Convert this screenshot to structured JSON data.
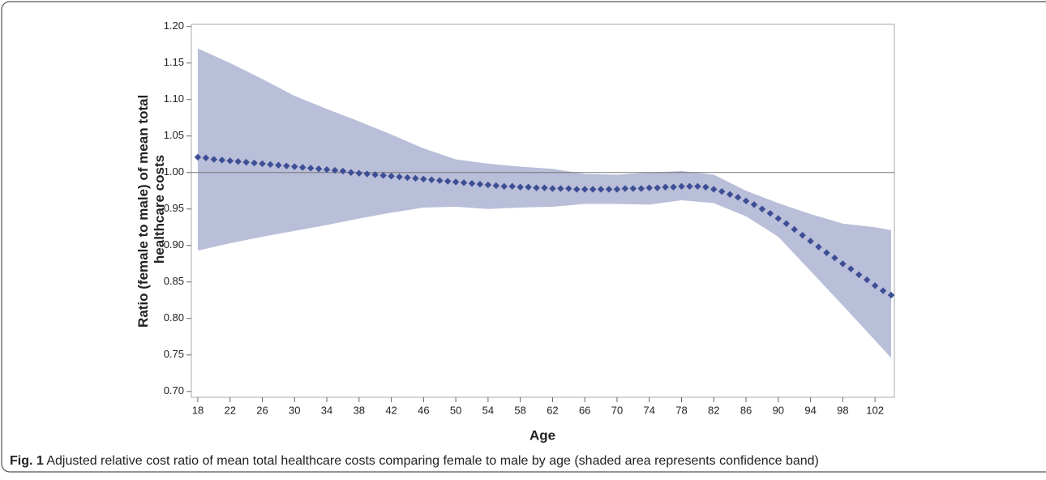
{
  "chart_data": {
    "type": "band-scatter",
    "y_label": [
      "Ratio (female to male) of mean total",
      "healthcare costs"
    ],
    "x_label": "Age",
    "xlim": [
      17.2,
      104.4
    ],
    "xticks": [
      18,
      22,
      26,
      30,
      34,
      38,
      42,
      46,
      50,
      54,
      58,
      62,
      66,
      70,
      74,
      78,
      82,
      86,
      90,
      94,
      98,
      102
    ],
    "ylim": [
      0.692,
      1.203
    ],
    "yticks": [
      {
        "value": 0.7,
        "label": "0.70"
      },
      {
        "value": 0.75,
        "label": "0.75"
      },
      {
        "value": 0.8,
        "label": "0.80"
      },
      {
        "value": 0.85,
        "label": "0.85"
      },
      {
        "value": 0.9,
        "label": "0.90"
      },
      {
        "value": 0.95,
        "label": "0.95"
      },
      {
        "value": 1.0,
        "label": "1.00"
      },
      {
        "value": 1.05,
        "label": "1.05"
      },
      {
        "value": 1.1,
        "label": "1.10"
      },
      {
        "value": 1.15,
        "label": "1.15"
      },
      {
        "value": 1.2,
        "label": "1.20"
      }
    ],
    "reference_line": 1.0,
    "band": {
      "color": "#b9bed9",
      "x": [
        18,
        22,
        26,
        30,
        34,
        38,
        42,
        46,
        50,
        54,
        58,
        62,
        66,
        70,
        74,
        78,
        82,
        86,
        90,
        94,
        98,
        102,
        104
      ],
      "upper": [
        1.17,
        1.15,
        1.128,
        1.105,
        1.087,
        1.07,
        1.052,
        1.033,
        1.018,
        1.012,
        1.008,
        1.005,
        0.998,
        0.997,
        1.0,
        1.002,
        0.997,
        0.975,
        0.958,
        0.943,
        0.93,
        0.925,
        0.921
      ],
      "lower": [
        0.893,
        0.903,
        0.912,
        0.92,
        0.928,
        0.937,
        0.945,
        0.952,
        0.953,
        0.95,
        0.952,
        0.953,
        0.957,
        0.957,
        0.956,
        0.962,
        0.958,
        0.94,
        0.912,
        0.865,
        0.818,
        0.77,
        0.746
      ]
    },
    "points": {
      "color": "#3c4e94",
      "x": [
        18,
        19,
        20,
        21,
        22,
        23,
        24,
        25,
        26,
        27,
        28,
        29,
        30,
        31,
        32,
        33,
        34,
        35,
        36,
        37,
        38,
        39,
        40,
        41,
        42,
        43,
        44,
        45,
        46,
        47,
        48,
        49,
        50,
        51,
        52,
        53,
        54,
        55,
        56,
        57,
        58,
        59,
        60,
        61,
        62,
        63,
        64,
        65,
        66,
        67,
        68,
        69,
        70,
        71,
        72,
        73,
        74,
        75,
        76,
        77,
        78,
        79,
        80,
        81,
        82,
        83,
        84,
        85,
        86,
        87,
        88,
        89,
        90,
        91,
        92,
        93,
        94,
        95,
        96,
        97,
        98,
        99,
        100,
        101,
        102,
        103,
        104
      ],
      "values": [
        1.021,
        1.02,
        1.018,
        1.017,
        1.016,
        1.015,
        1.014,
        1.013,
        1.012,
        1.011,
        1.01,
        1.009,
        1.008,
        1.007,
        1.006,
        1.005,
        1.004,
        1.003,
        1.002,
        1.0,
        0.999,
        0.998,
        0.997,
        0.996,
        0.995,
        0.994,
        0.993,
        0.992,
        0.991,
        0.99,
        0.989,
        0.988,
        0.987,
        0.986,
        0.985,
        0.984,
        0.983,
        0.982,
        0.981,
        0.981,
        0.98,
        0.98,
        0.979,
        0.979,
        0.978,
        0.978,
        0.978,
        0.977,
        0.977,
        0.977,
        0.977,
        0.977,
        0.977,
        0.978,
        0.978,
        0.978,
        0.979,
        0.979,
        0.98,
        0.98,
        0.981,
        0.981,
        0.981,
        0.98,
        0.977,
        0.974,
        0.97,
        0.966,
        0.961,
        0.956,
        0.95,
        0.944,
        0.937,
        0.93,
        0.922,
        0.914,
        0.906,
        0.898,
        0.89,
        0.883,
        0.875,
        0.868,
        0.86,
        0.853,
        0.845,
        0.838,
        0.832
      ]
    }
  },
  "caption": {
    "label": "Fig. 1",
    "text": "Adjusted relative cost ratio of mean total healthcare costs comparing female to male by age (shaded area represents confidence band)"
  }
}
